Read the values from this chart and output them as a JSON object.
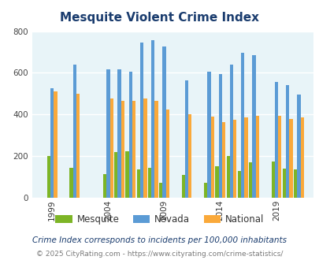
{
  "title": "Mesquite Violent Crime Index",
  "years": [
    1999,
    2001,
    2004,
    2005,
    2006,
    2007,
    2008,
    2009,
    2011,
    2013,
    2014,
    2015,
    2016,
    2017,
    2019,
    2020,
    2021
  ],
  "mesquite": [
    200,
    145,
    115,
    220,
    225,
    135,
    145,
    70,
    110,
    70,
    150,
    200,
    130,
    170,
    175,
    140,
    135
  ],
  "nevada": [
    525,
    640,
    615,
    615,
    605,
    745,
    755,
    725,
    565,
    605,
    595,
    640,
    695,
    685,
    555,
    540,
    495
  ],
  "national": [
    510,
    500,
    475,
    465,
    465,
    475,
    465,
    425,
    400,
    390,
    365,
    375,
    385,
    395,
    395,
    380,
    385
  ],
  "bar_width": 0.3,
  "mesquite_color": "#7db526",
  "nevada_color": "#5b9bd5",
  "national_color": "#faa93a",
  "bg_color": "#e8f4f8",
  "title_color": "#1a3c6e",
  "ylim": [
    0,
    800
  ],
  "yticks": [
    0,
    200,
    400,
    600,
    800
  ],
  "xlabel_ticks": [
    1999,
    2004,
    2009,
    2014,
    2019
  ],
  "legend_labels": [
    "Mesquite",
    "Nevada",
    "National"
  ],
  "footer_text1": "Crime Index corresponds to incidents per 100,000 inhabitants",
  "footer_text2": "© 2025 CityRating.com - https://www.cityrating.com/crime-statistics/",
  "footer1_color": "#1a3c6e",
  "footer2_color": "#7a7a7a"
}
